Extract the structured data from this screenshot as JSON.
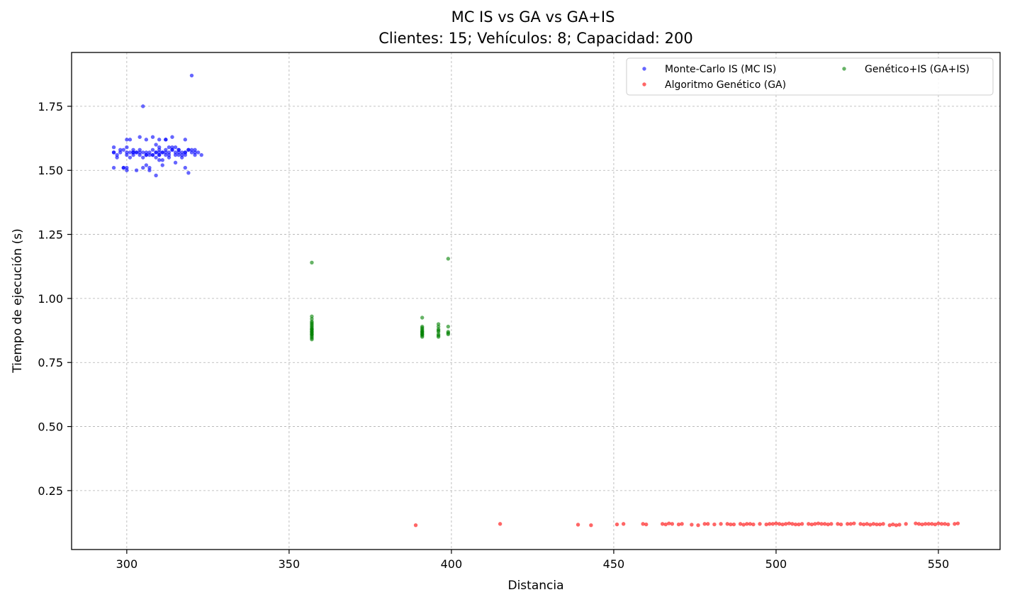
{
  "chart_data": {
    "type": "scatter",
    "title": "MC IS vs GA vs GA+IS",
    "subtitle": "Clientes: 15; Vehículos: 8; Capacidad: 200",
    "xlabel": "Distancia",
    "ylabel": "Tiempo de ejecución (s)",
    "xlim": [
      283,
      569
    ],
    "ylim": [
      0.02,
      1.96
    ],
    "xticks": [
      300,
      350,
      400,
      450,
      500,
      550
    ],
    "yticks": [
      0.25,
      0.5,
      0.75,
      1.0,
      1.25,
      1.5,
      1.75
    ],
    "xtick_labels": [
      "300",
      "350",
      "400",
      "450",
      "500",
      "550"
    ],
    "ytick_labels": [
      "0.25",
      "0.50",
      "0.75",
      "1.00",
      "1.25",
      "1.50",
      "1.75"
    ],
    "grid": true,
    "legend_placement": "top-right",
    "series": [
      {
        "name": "Monte-Carlo IS (MC IS)",
        "color": "#0000ff",
        "x": [
          296,
          297,
          298,
          299,
          300,
          300,
          301,
          302,
          303,
          304,
          305,
          306,
          307,
          308,
          309,
          310,
          310,
          311,
          312,
          313,
          314,
          315,
          316,
          317,
          318,
          319,
          320,
          321,
          322,
          323,
          296,
          298,
          300,
          302,
          304,
          306,
          308,
          310,
          312,
          314,
          316,
          318,
          320,
          297,
          301,
          305,
          309,
          313,
          317,
          321,
          299,
          303,
          307,
          311,
          315,
          319,
          300,
          304,
          308,
          312,
          316,
          306,
          310,
          314,
          318,
          302,
          309,
          311,
          296,
          300,
          305,
          307,
          310,
          313,
          318,
          301,
          306,
          309,
          312,
          315,
          319,
          305,
          320,
          304,
          307,
          311,
          315,
          318,
          300,
          303,
          308,
          312,
          296,
          316,
          299,
          302,
          306,
          310,
          314,
          317,
          321,
          309,
          313,
          310
        ],
        "y": [
          1.57,
          1.56,
          1.57,
          1.58,
          1.57,
          1.56,
          1.57,
          1.56,
          1.57,
          1.56,
          1.57,
          1.56,
          1.57,
          1.56,
          1.57,
          1.56,
          1.58,
          1.57,
          1.56,
          1.57,
          1.58,
          1.56,
          1.57,
          1.56,
          1.57,
          1.58,
          1.57,
          1.56,
          1.57,
          1.56,
          1.59,
          1.58,
          1.59,
          1.58,
          1.58,
          1.57,
          1.58,
          1.59,
          1.58,
          1.59,
          1.58,
          1.57,
          1.58,
          1.55,
          1.55,
          1.55,
          1.55,
          1.55,
          1.55,
          1.57,
          1.51,
          1.5,
          1.51,
          1.52,
          1.53,
          1.49,
          1.62,
          1.63,
          1.63,
          1.62,
          1.58,
          1.62,
          1.62,
          1.63,
          1.62,
          1.57,
          1.48,
          1.54,
          1.51,
          1.51,
          1.51,
          1.5,
          1.54,
          1.59,
          1.51,
          1.62,
          1.52,
          1.6,
          1.62,
          1.59,
          1.58,
          1.75,
          1.87,
          1.57,
          1.56,
          1.57,
          1.57,
          1.56,
          1.5,
          1.57,
          1.56,
          1.57,
          1.57,
          1.56,
          1.51,
          1.57,
          1.56,
          1.57,
          1.58,
          1.57,
          1.58,
          1.57,
          1.56,
          1.56
        ],
        "opacity": 0.6
      },
      {
        "name": "Algoritmo Genético (GA)",
        "color": "#ff0000",
        "x": [
          389,
          415,
          439,
          443,
          451,
          453,
          459,
          460,
          466,
          467,
          468,
          471,
          474,
          476,
          478,
          481,
          483,
          485,
          487,
          489,
          490,
          491,
          493,
          495,
          497,
          499,
          500,
          501,
          502,
          503,
          504,
          505,
          506,
          508,
          510,
          511,
          512,
          513,
          514,
          516,
          517,
          519,
          520,
          522,
          524,
          526,
          527,
          528,
          529,
          530,
          532,
          533,
          535,
          536,
          538,
          540,
          543,
          545,
          546,
          547,
          548,
          549,
          550,
          551,
          553,
          555,
          556,
          465,
          470,
          479,
          486,
          492,
          498,
          507,
          515,
          523,
          531,
          537,
          544,
          552
        ],
        "y": [
          0.115,
          0.12,
          0.117,
          0.115,
          0.118,
          0.12,
          0.12,
          0.118,
          0.118,
          0.122,
          0.12,
          0.12,
          0.117,
          0.115,
          0.12,
          0.118,
          0.12,
          0.12,
          0.118,
          0.12,
          0.117,
          0.12,
          0.118,
          0.12,
          0.118,
          0.12,
          0.122,
          0.12,
          0.118,
          0.12,
          0.122,
          0.12,
          0.118,
          0.12,
          0.12,
          0.118,
          0.12,
          0.122,
          0.12,
          0.118,
          0.12,
          0.12,
          0.118,
          0.12,
          0.122,
          0.12,
          0.118,
          0.12,
          0.117,
          0.12,
          0.118,
          0.12,
          0.115,
          0.118,
          0.117,
          0.12,
          0.122,
          0.118,
          0.12,
          0.12,
          0.12,
          0.118,
          0.122,
          0.12,
          0.118,
          0.12,
          0.122,
          0.12,
          0.118,
          0.12,
          0.118,
          0.12,
          0.12,
          0.118,
          0.12,
          0.12,
          0.118,
          0.115,
          0.12,
          0.12
        ],
        "opacity": 0.6
      },
      {
        "name": "Genético+IS (GA+IS)",
        "color": "#008000",
        "x": [
          357,
          357,
          357,
          357,
          357,
          357,
          357,
          357,
          357,
          357,
          357,
          357,
          357,
          357,
          357,
          357,
          357,
          357,
          357,
          357,
          391,
          391,
          391,
          391,
          391,
          391,
          391,
          391,
          391,
          391,
          391,
          391,
          396,
          396,
          396,
          396,
          396,
          396,
          396,
          396,
          399,
          399,
          399,
          399,
          357,
          399
        ],
        "y": [
          0.84,
          0.85,
          0.86,
          0.865,
          0.87,
          0.875,
          0.88,
          0.885,
          0.89,
          0.895,
          0.9,
          0.905,
          0.91,
          0.92,
          0.93,
          0.845,
          0.855,
          0.86,
          0.87,
          0.88,
          0.85,
          0.855,
          0.86,
          0.865,
          0.87,
          0.875,
          0.88,
          0.885,
          0.89,
          0.925,
          0.86,
          0.87,
          0.85,
          0.855,
          0.86,
          0.87,
          0.875,
          0.88,
          0.89,
          0.9,
          0.86,
          0.865,
          0.87,
          0.89,
          1.14,
          1.155
        ],
        "opacity": 0.6
      }
    ]
  }
}
